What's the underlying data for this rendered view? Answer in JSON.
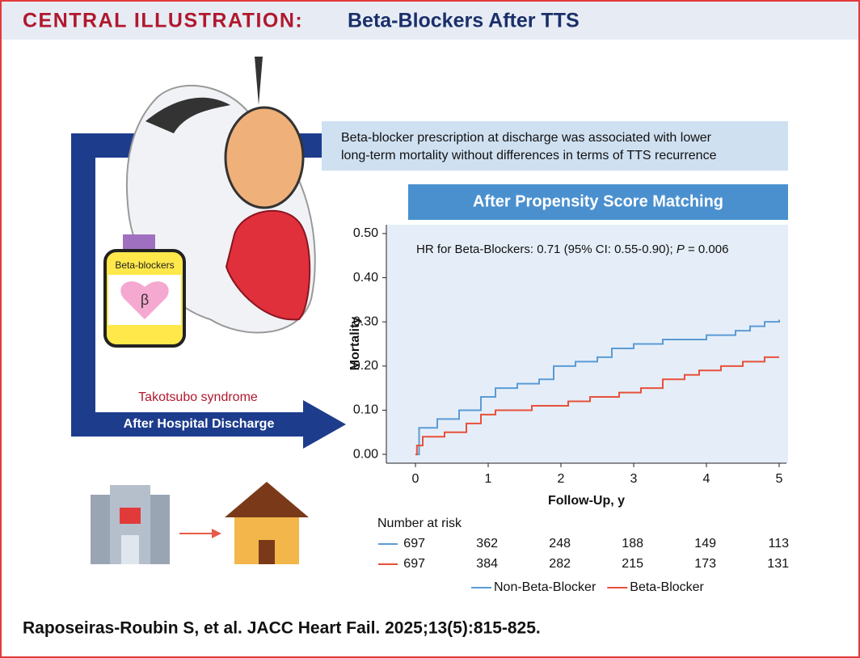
{
  "header": {
    "label": "CENTRAL ILLUSTRATION:",
    "title": "Beta-Blockers After TTS"
  },
  "callout": [
    "Beta-blocker prescription at discharge was associated with lower",
    "long-term mortality without differences in terms of TTS recurrence"
  ],
  "illustration": {
    "bottle": "Beta-blockers",
    "symbol": "β",
    "syndrome": "Takotsubo syndrome",
    "arrow": "After Hospital Discharge"
  },
  "citation": "Raposeiras-Roubin S, et al. JACC Heart Fail. 2025;13(5):815-825.",
  "chart_data": {
    "type": "step",
    "title": "After Propensity Score Matching",
    "annotation": {
      "text": "HR for Beta-Blockers: 0.71 (95% CI: 0.55-0.90); ",
      "italic": "P",
      "rest": " = 0.006"
    },
    "xlabel": "Follow-Up, y",
    "ylabel": "Mortality",
    "xlim": [
      -0.4,
      5.1
    ],
    "ylim": [
      -0.02,
      0.52
    ],
    "xticks": [
      0,
      1,
      2,
      3,
      4,
      5
    ],
    "yticks": [
      {
        "value": 0,
        "label": "0.00"
      },
      {
        "value": 0.1,
        "label": "0.10"
      },
      {
        "value": 0.2,
        "label": "0.20"
      },
      {
        "value": 0.3,
        "label": "0.30"
      },
      {
        "value": 0.4,
        "label": "0.40"
      },
      {
        "value": 0.5,
        "label": "0.50"
      }
    ],
    "series": [
      {
        "name": "Non-Beta-Blocker",
        "color": "#5b9bd5",
        "x": [
          0,
          0.05,
          0.3,
          0.6,
          0.9,
          1.1,
          1.4,
          1.7,
          1.9,
          2.2,
          2.5,
          2.7,
          3.0,
          3.4,
          4.0,
          4.4,
          4.6,
          4.8,
          5
        ],
        "values": [
          0,
          0.06,
          0.08,
          0.1,
          0.13,
          0.15,
          0.16,
          0.17,
          0.2,
          0.21,
          0.22,
          0.24,
          0.25,
          0.26,
          0.27,
          0.28,
          0.29,
          0.3,
          0.305
        ]
      },
      {
        "name": "Beta-Blocker",
        "color": "#e8503a",
        "x": [
          0,
          0.02,
          0.1,
          0.4,
          0.7,
          0.9,
          1.1,
          1.6,
          2.1,
          2.4,
          2.8,
          3.1,
          3.4,
          3.7,
          3.9,
          4.2,
          4.5,
          4.8,
          5
        ],
        "values": [
          0,
          0.02,
          0.04,
          0.05,
          0.07,
          0.09,
          0.1,
          0.11,
          0.12,
          0.13,
          0.14,
          0.15,
          0.17,
          0.18,
          0.19,
          0.2,
          0.21,
          0.22,
          0.22
        ]
      }
    ],
    "risk_table": {
      "title": "Number at risk",
      "rows": [
        [
          697,
          362,
          248,
          188,
          149,
          113
        ],
        [
          697,
          384,
          282,
          215,
          173,
          131
        ]
      ]
    }
  }
}
